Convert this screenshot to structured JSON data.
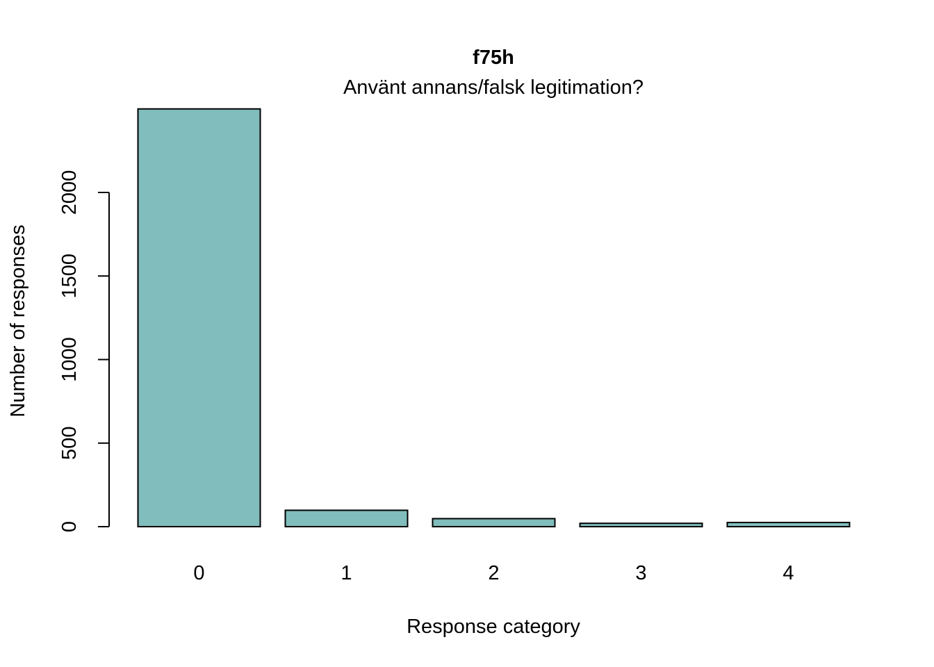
{
  "chart_data": {
    "type": "bar",
    "title": "f75h",
    "subtitle": "Använt annans/falsk legitimation?",
    "xlabel": "Response category",
    "ylabel": "Number of responses",
    "categories": [
      "0",
      "1",
      "2",
      "3",
      "4"
    ],
    "values": [
      2500,
      98,
      48,
      20,
      25
    ],
    "ylim": [
      0,
      2500
    ],
    "yticks": [
      0,
      500,
      1000,
      1500,
      2000
    ],
    "bar_color": "#80BDBC",
    "grid": false,
    "legend": "none"
  }
}
